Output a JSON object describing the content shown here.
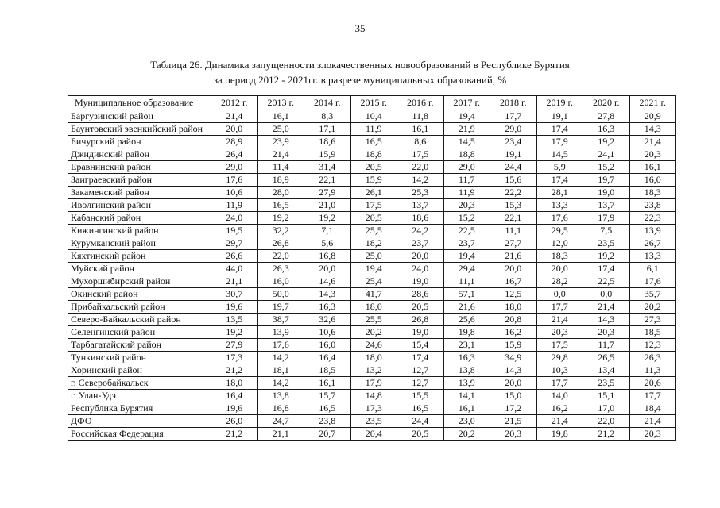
{
  "page": {
    "number": "35"
  },
  "title": {
    "line1": "Таблица 26. Динамика запущенности злокачественных новообразований в Республике Бурятия",
    "line2": "за период 2012 - 2021гг. в разрезе муниципальных образований, %"
  },
  "table": {
    "header": [
      "Муниципальное образование",
      "2012 г.",
      "2013 г.",
      "2014 г.",
      "2015 г.",
      "2016 г.",
      "2017 г.",
      "2018 г.",
      "2019 г.",
      "2020 г.",
      "2021 г."
    ],
    "rows": [
      {
        "name": "Баргузинский район",
        "values": [
          "21,4",
          "16,1",
          "8,3",
          "10,4",
          "11,8",
          "19,4",
          "17,7",
          "19,1",
          "27,8",
          "20,9"
        ]
      },
      {
        "name": "Баунтовский эвенкийский район",
        "values": [
          "20,0",
          "25,0",
          "17,1",
          "11,9",
          "16,1",
          "21,9",
          "29,0",
          "17,4",
          "16,3",
          "14,3"
        ]
      },
      {
        "name": "Бичурский район",
        "values": [
          "28,9",
          "23,9",
          "18,6",
          "16,5",
          "8,6",
          "14,5",
          "23,4",
          "17,9",
          "19,2",
          "21,4"
        ]
      },
      {
        "name": "Джидинский район",
        "values": [
          "26,4",
          "21,4",
          "15,9",
          "18,8",
          "17,5",
          "18,8",
          "19,1",
          "14,5",
          "24,1",
          "20,3"
        ]
      },
      {
        "name": "Еравнинский район",
        "values": [
          "29,0",
          "11,4",
          "31,4",
          "20,5",
          "22,0",
          "29,0",
          "24,4",
          "5,9",
          "15,2",
          "16,1"
        ]
      },
      {
        "name": "Заиграевский район",
        "values": [
          "17,6",
          "18,9",
          "22,1",
          "15,9",
          "14,2",
          "11,7",
          "15,6",
          "17,4",
          "19,7",
          "16,0"
        ]
      },
      {
        "name": "Закаменский район",
        "values": [
          "10,6",
          "28,0",
          "27,9",
          "26,1",
          "25,3",
          "11,9",
          "22,2",
          "28,1",
          "19,0",
          "18,3"
        ]
      },
      {
        "name": "Иволгинский район",
        "values": [
          "11,9",
          "16,5",
          "21,0",
          "17,5",
          "13,7",
          "20,3",
          "15,3",
          "13,3",
          "13,7",
          "23,8"
        ]
      },
      {
        "name": "Кабанский район",
        "values": [
          "24,0",
          "19,2",
          "19,2",
          "20,5",
          "18,6",
          "15,2",
          "22,1",
          "17,6",
          "17,9",
          "22,3"
        ]
      },
      {
        "name": "Кижингинский район",
        "values": [
          "19,5",
          "32,2",
          "7,1",
          "25,5",
          "24,2",
          "22,5",
          "11,1",
          "29,5",
          "7,5",
          "13,9"
        ]
      },
      {
        "name": "Курумканский район",
        "values": [
          "29,7",
          "26,8",
          "5,6",
          "18,2",
          "23,7",
          "23,7",
          "27,7",
          "12,0",
          "23,5",
          "26,7"
        ]
      },
      {
        "name": "Кяхтинский район",
        "values": [
          "26,6",
          "22,0",
          "16,8",
          "25,0",
          "20,0",
          "19,4",
          "21,6",
          "18,3",
          "19,2",
          "13,3"
        ]
      },
      {
        "name": "Муйский район",
        "values": [
          "44,0",
          "26,3",
          "20,0",
          "19,4",
          "24,0",
          "29,4",
          "20,0",
          "20,0",
          "17,4",
          "6,1"
        ]
      },
      {
        "name": "Мухоршибирский район",
        "values": [
          "21,1",
          "16,0",
          "14,6",
          "25,4",
          "19,0",
          "11,1",
          "16,7",
          "28,2",
          "22,5",
          "17,6"
        ]
      },
      {
        "name": "Окинский район",
        "values": [
          "30,7",
          "50,0",
          "14,3",
          "41,7",
          "28,6",
          "57,1",
          "12,5",
          "0,0",
          "0,0",
          "35,7"
        ]
      },
      {
        "name": "Прибайкальский район",
        "values": [
          "19,6",
          "19,7",
          "16,3",
          "18,0",
          "20,5",
          "21,6",
          "18,0",
          "17,7",
          "21,4",
          "20,2"
        ]
      },
      {
        "name": "Северо-Байкальский район",
        "values": [
          "13,5",
          "38,7",
          "32,6",
          "25,5",
          "26,8",
          "25,6",
          "20,8",
          "21,4",
          "14,3",
          "27,3"
        ]
      },
      {
        "name": "Селенгинский район",
        "values": [
          "19,2",
          "13,9",
          "10,6",
          "20,2",
          "19,0",
          "19,8",
          "16,2",
          "20,3",
          "20,3",
          "18,5"
        ]
      },
      {
        "name": "Тарбагатайский район",
        "values": [
          "27,9",
          "17,6",
          "16,0",
          "24,6",
          "15,4",
          "23,1",
          "15,9",
          "17,5",
          "11,7",
          "12,3"
        ]
      },
      {
        "name": "Тункинский район",
        "values": [
          "17,3",
          "14,2",
          "16,4",
          "18,0",
          "17,4",
          "16,3",
          "34,9",
          "29,8",
          "26,5",
          "26,3"
        ]
      },
      {
        "name": "Хоринский район",
        "values": [
          "21,2",
          "18,1",
          "18,5",
          "13,2",
          "12,7",
          "13,8",
          "14,3",
          "10,3",
          "13,4",
          "11,3"
        ]
      },
      {
        "name": "г. Северобайкальск",
        "values": [
          "18,0",
          "14,2",
          "16,1",
          "17,9",
          "12,7",
          "13,9",
          "20,0",
          "17,7",
          "23,5",
          "20,6"
        ]
      },
      {
        "name": "г. Улан-Удэ",
        "values": [
          "16,4",
          "13,8",
          "15,7",
          "14,8",
          "15,5",
          "14,1",
          "15,0",
          "14,0",
          "15,1",
          "17,7"
        ]
      },
      {
        "name": "Республика Бурятия",
        "values": [
          "19,6",
          "16,8",
          "16,5",
          "17,3",
          "16,5",
          "16,1",
          "17,2",
          "16,2",
          "17,0",
          "18,4"
        ]
      },
      {
        "name": "ДФО",
        "values": [
          "26,0",
          "24,7",
          "23,8",
          "23,5",
          "24,4",
          "23,0",
          "21,5",
          "21,4",
          "22,0",
          "21,4"
        ]
      },
      {
        "name": "Российская Федерация",
        "values": [
          "21,2",
          "21,1",
          "20,7",
          "20,4",
          "20,5",
          "20,2",
          "20,3",
          "19,8",
          "21,2",
          "20,3"
        ]
      }
    ]
  }
}
